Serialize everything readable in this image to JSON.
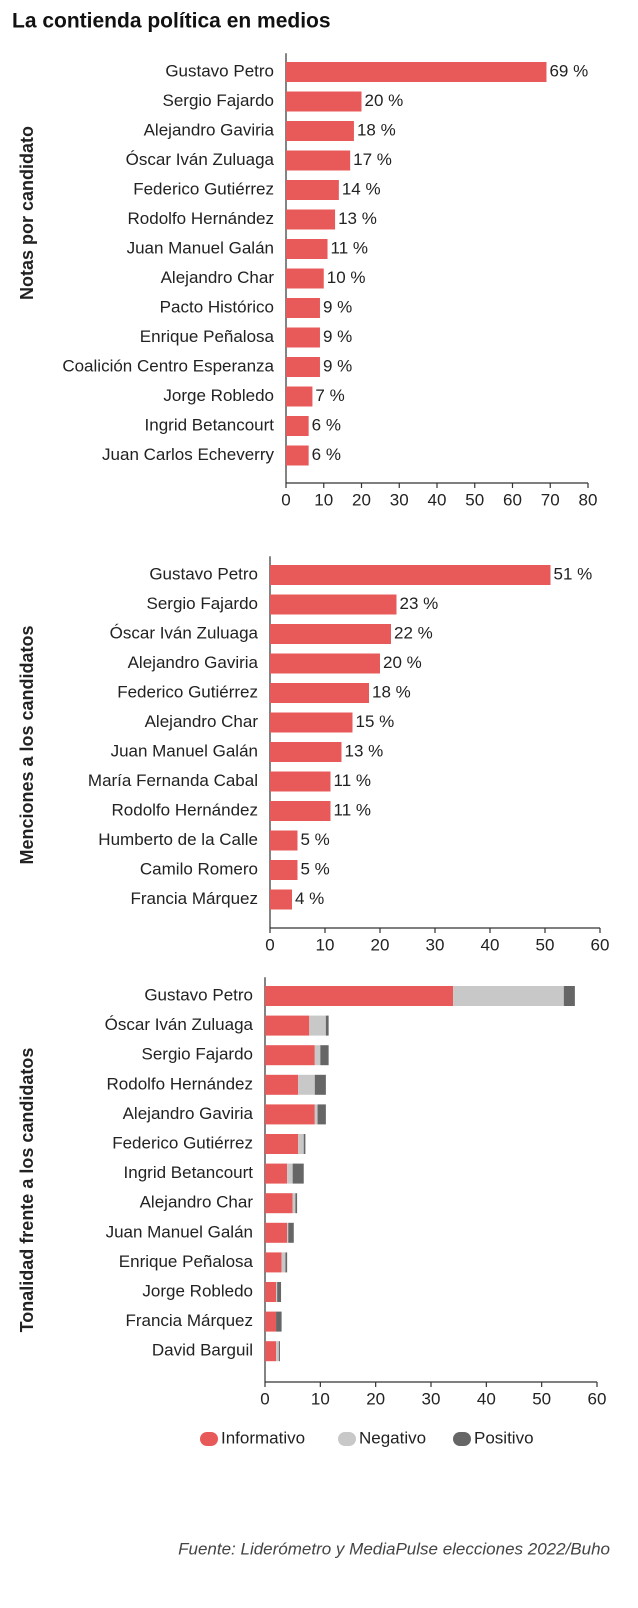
{
  "title": "La contienda política en medios",
  "source": "Fuente: Liderómetro y MediaPulse elecciones 2022/Buho",
  "chart_data": [
    {
      "type": "bar",
      "orientation": "horizontal",
      "ylabel": "Notas por candidato",
      "categories": [
        "Gustavo Petro",
        "Sergio Fajardo",
        "Alejandro Gaviria",
        "Óscar Iván Zuluaga",
        "Federico Gutiérrez",
        "Rodolfo Hernández",
        "Juan Manuel Galán",
        "Alejandro Char",
        "Pacto Histórico",
        "Enrique Peñalosa",
        "Coalición Centro Esperanza",
        "Jorge Robledo",
        "Ingrid Betancourt",
        "Juan Carlos Echeverry"
      ],
      "values": [
        69,
        20,
        18,
        17,
        14,
        13,
        11,
        10,
        9,
        9,
        9,
        7,
        6,
        6
      ],
      "value_labels": [
        "69 %",
        "20 %",
        "18 %",
        "17 %",
        "14 %",
        "13 %",
        "11 %",
        "10 %",
        "9 %",
        "9 %",
        "9 %",
        "7 %",
        "6 %",
        "6 %"
      ],
      "color": "#e85a5a",
      "xlim": [
        0,
        80
      ],
      "xticks": [
        0,
        10,
        20,
        30,
        40,
        50,
        60,
        70,
        80
      ]
    },
    {
      "type": "bar",
      "orientation": "horizontal",
      "ylabel": "Menciones a los candidatos",
      "categories": [
        "Gustavo Petro",
        "Sergio Fajardo",
        "Óscar Iván Zuluaga",
        "Alejandro Gaviria",
        "Federico Gutiérrez",
        "Alejandro Char",
        "Juan Manuel Galán",
        "María Fernanda Cabal",
        "Rodolfo Hernández",
        "Humberto de la Calle",
        "Camilo Romero",
        "Francia Márquez"
      ],
      "values": [
        51,
        23,
        22,
        20,
        18,
        15,
        13,
        11,
        11,
        5,
        5,
        4
      ],
      "value_labels": [
        "51 %",
        "23 %",
        "22 %",
        "20 %",
        "18 %",
        "15 %",
        "13 %",
        "11 %",
        "11 %",
        "5 %",
        "5 %",
        "4 %"
      ],
      "color": "#e85a5a",
      "xlim": [
        0,
        60
      ],
      "xticks": [
        0,
        10,
        20,
        30,
        40,
        50,
        60
      ]
    },
    {
      "type": "stacked_bar",
      "orientation": "horizontal",
      "ylabel": "Tonalidad frente a los candidatos",
      "categories": [
        "Gustavo Petro",
        "Óscar Iván Zuluaga",
        "Sergio Fajardo",
        "Rodolfo Hernández",
        "Alejandro Gaviria",
        "Federico Gutiérrez",
        "Ingrid Betancourt",
        "Alejandro Char",
        "Juan Manuel Galán",
        "Enrique Peñalosa",
        "Jorge Robledo",
        "Francia Márquez",
        "David Barguil"
      ],
      "series": [
        {
          "name": "Informativo",
          "color": "#e85a5a",
          "values": [
            34,
            8,
            9,
            6,
            9,
            6,
            4,
            5,
            4,
            3,
            2,
            2,
            2
          ]
        },
        {
          "name": "Negativo",
          "color": "#c8c8c8",
          "values": [
            20,
            3,
            1,
            3,
            0.5,
            1,
            1,
            0.5,
            0.2,
            0.7,
            0.2,
            0,
            0.5
          ]
        },
        {
          "name": "Positivo",
          "color": "#666666",
          "values": [
            2,
            0.5,
            1.5,
            2,
            1.5,
            0.3,
            2,
            0.3,
            1,
            0.3,
            0.7,
            1,
            0.2
          ]
        }
      ],
      "xlim": [
        0,
        60
      ],
      "xticks": [
        0,
        10,
        20,
        30,
        40,
        50,
        60
      ],
      "legend": "bottom"
    }
  ]
}
